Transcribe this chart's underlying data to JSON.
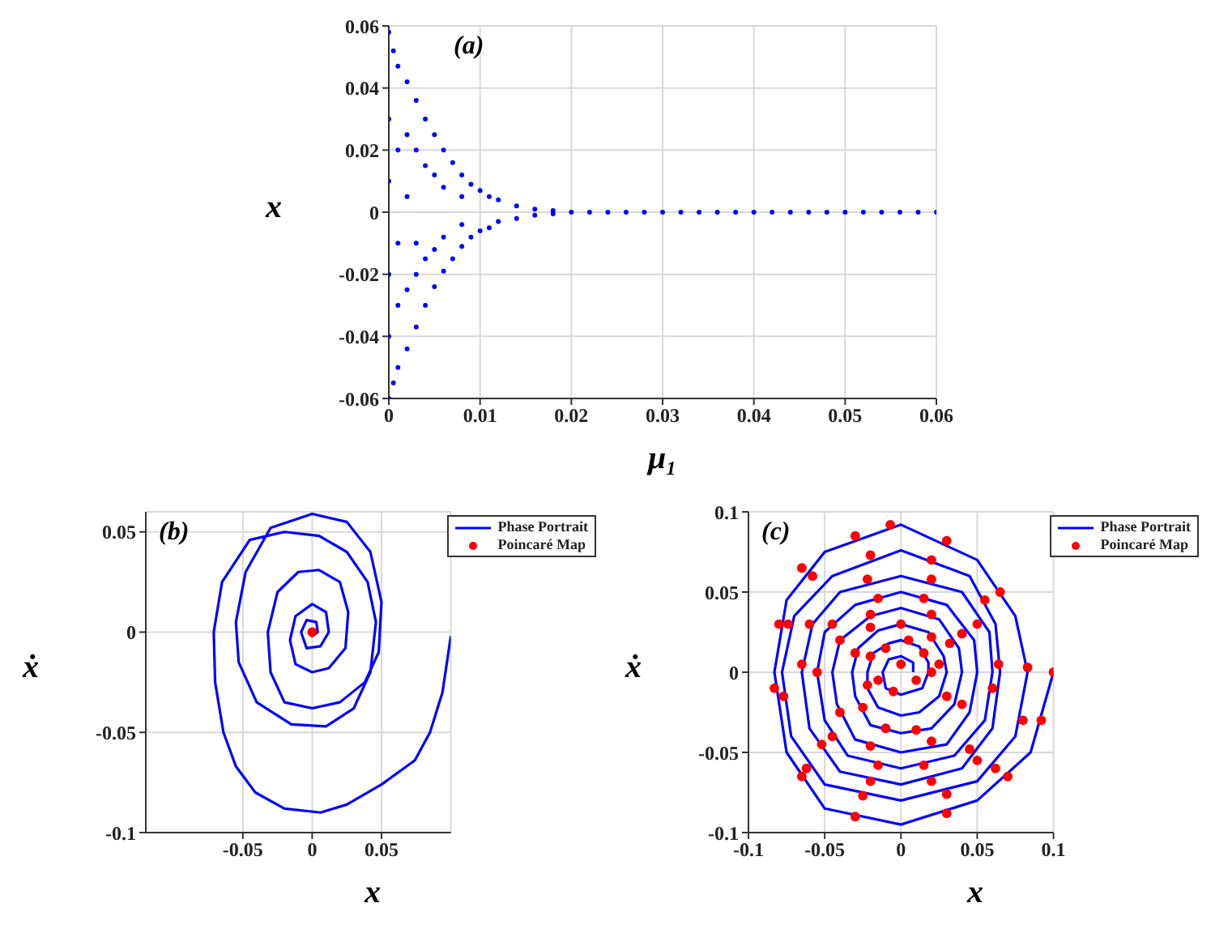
{
  "chart_data": [
    {
      "type": "scatter",
      "title": "(a)",
      "xlabel": "μ₁",
      "ylabel": "x",
      "xlim": [
        0,
        0.06
      ],
      "xticks": [
        0,
        0.01,
        0.02,
        0.03,
        0.04,
        0.05,
        0.06
      ],
      "ylim": [
        -0.06,
        0.06
      ],
      "yticks": [
        -0.06,
        -0.04,
        -0.02,
        0,
        0.02,
        0.04,
        0.06
      ],
      "grid": true,
      "marker": "circle",
      "series": [
        {
          "color": "#0000ff",
          "x": [
            0,
            0.0005,
            0.001,
            0.002,
            0.003,
            0.004,
            0.005,
            0.006,
            0.007,
            0.008,
            0.009,
            0.01,
            0.011,
            0.012,
            0.014,
            0.016,
            0.018,
            0,
            0.0005,
            0.001,
            0.002,
            0.003,
            0.004,
            0.005,
            0.006,
            0.007,
            0.008,
            0.009,
            0.01,
            0.011,
            0.012,
            0.014,
            0.016,
            0.018,
            0,
            0,
            0,
            0,
            0.001,
            0.001,
            0.001,
            0.002,
            0.002,
            0.002,
            0.003,
            0.003,
            0.003,
            0.004,
            0.004,
            0.005,
            0.005,
            0.006,
            0.006,
            0.008,
            0.008,
            0.02,
            0.022,
            0.024,
            0.026,
            0.028,
            0.03,
            0.032,
            0.034,
            0.036,
            0.038,
            0.04,
            0.042,
            0.044,
            0.046,
            0.048,
            0.05,
            0.052,
            0.054,
            0.056,
            0.058,
            0.06
          ],
          "values": [
            0.058,
            0.052,
            0.047,
            0.042,
            0.036,
            0.03,
            0.025,
            0.02,
            0.016,
            0.012,
            0.009,
            0.007,
            0.005,
            0.004,
            0.002,
            0.001,
            0.0005,
            -0.06,
            -0.055,
            -0.05,
            -0.044,
            -0.037,
            -0.03,
            -0.024,
            -0.019,
            -0.015,
            -0.011,
            -0.008,
            -0.006,
            -0.005,
            -0.003,
            -0.002,
            -0.001,
            -0.0005,
            0.03,
            0.01,
            -0.02,
            -0.04,
            0.02,
            -0.01,
            -0.03,
            0.025,
            0.005,
            -0.025,
            0.02,
            -0.01,
            -0.02,
            0.015,
            -0.015,
            0.012,
            -0.012,
            0.008,
            -0.008,
            0.005,
            -0.004,
            0,
            0,
            0,
            0,
            0,
            0,
            0,
            0,
            0,
            0,
            0,
            0,
            0,
            0,
            0,
            0,
            0,
            0,
            0,
            0,
            0
          ]
        }
      ]
    },
    {
      "type": "line",
      "title": "(b)",
      "xlabel": "x",
      "ylabel": "ẋ",
      "xlim": [
        -0.12,
        0.1
      ],
      "xticks": [
        -0.05,
        0,
        0.05
      ],
      "ylim": [
        -0.1,
        0.06
      ],
      "yticks": [
        -0.1,
        -0.05,
        0,
        0.05
      ],
      "grid": true,
      "legend": "top right",
      "line_style": "solid",
      "series": [
        {
          "name": "Phase Portrait",
          "type": "line",
          "color": "#0000ff",
          "x": [
            0.1,
            0.094,
            0.085,
            0.074,
            0.05,
            0.025,
            0.006,
            -0.02,
            -0.041,
            -0.055,
            -0.064,
            -0.07,
            -0.071,
            -0.065,
            -0.045,
            -0.02,
            0.005,
            0.025,
            0.04,
            0.046,
            0.042,
            0.03,
            0.01,
            -0.015,
            -0.04,
            -0.053,
            -0.055,
            -0.048,
            -0.03,
            0,
            0.025,
            0.042,
            0.05,
            0.048,
            0.038,
            0.02,
            0,
            -0.02,
            -0.03,
            -0.032,
            -0.025,
            -0.01,
            0.005,
            0.02,
            0.026,
            0.024,
            0.012,
            0,
            -0.012,
            -0.016,
            -0.012,
            0,
            0.01,
            0.012,
            0.006,
            -0.004,
            -0.008,
            -0.004,
            0.003,
            0.004,
            0,
            0
          ],
          "values": [
            -0.002,
            -0.03,
            -0.05,
            -0.064,
            -0.076,
            -0.086,
            -0.09,
            -0.088,
            -0.08,
            -0.067,
            -0.05,
            -0.025,
            0,
            0.025,
            0.046,
            0.05,
            0.048,
            0.04,
            0.025,
            0.005,
            -0.02,
            -0.038,
            -0.047,
            -0.046,
            -0.035,
            -0.015,
            0.005,
            0.03,
            0.052,
            0.059,
            0.055,
            0.04,
            0.015,
            -0.01,
            -0.025,
            -0.035,
            -0.038,
            -0.035,
            -0.02,
            0,
            0.02,
            0.03,
            0.031,
            0.025,
            0.01,
            -0.008,
            -0.018,
            -0.02,
            -0.016,
            -0.004,
            0.008,
            0.014,
            0.01,
            0,
            -0.007,
            -0.008,
            0,
            0.006,
            0.005,
            0,
            -0.002,
            0
          ]
        },
        {
          "name": "Poincaré Map",
          "type": "scatter",
          "color": "#ff0000",
          "marker": "circle",
          "x": [
            0
          ],
          "values": [
            0
          ]
        }
      ]
    },
    {
      "type": "line",
      "title": "(c)",
      "xlabel": "x",
      "ylabel": "ẋ",
      "xlim": [
        -0.1,
        0.1
      ],
      "xticks": [
        -0.1,
        -0.05,
        0,
        0.05,
        0.1
      ],
      "ylim": [
        -0.1,
        0.1
      ],
      "yticks": [
        -0.1,
        -0.05,
        0,
        0.05,
        0.1
      ],
      "grid": true,
      "legend": "top right",
      "line_style": "solid",
      "series": [
        {
          "name": "Phase Portrait",
          "type": "line",
          "color": "#0000ff",
          "x": [
            0.1,
            0.085,
            0.05,
            0,
            -0.05,
            -0.075,
            -0.083,
            -0.075,
            -0.05,
            0,
            0.05,
            0.075,
            0.083,
            0.075,
            0.05,
            0,
            -0.05,
            -0.072,
            -0.078,
            -0.07,
            -0.045,
            0,
            0.045,
            0.062,
            0.065,
            0.06,
            0.04,
            0,
            -0.04,
            -0.06,
            -0.065,
            -0.058,
            -0.04,
            0,
            0.04,
            0.058,
            0.06,
            0.055,
            0.035,
            0,
            -0.035,
            -0.05,
            -0.055,
            -0.05,
            -0.03,
            0,
            0.03,
            0.048,
            0.05,
            0.045,
            0.03,
            0,
            -0.03,
            -0.042,
            -0.045,
            -0.04,
            -0.02,
            0,
            0.025,
            0.038,
            0.04,
            0.035,
            0.02,
            0,
            -0.02,
            -0.03,
            -0.032,
            -0.028,
            -0.015,
            0,
            0.018,
            0.028,
            0.03,
            0.025,
            0.012,
            0,
            -0.015,
            -0.022,
            -0.022,
            -0.018,
            -0.008,
            0,
            0.012,
            0.018,
            0.018,
            0.014,
            0,
            -0.01,
            -0.012,
            -0.008,
            0,
            0.008,
            0.008
          ],
          "values": [
            0,
            -0.05,
            -0.08,
            -0.095,
            -0.085,
            -0.05,
            0,
            0.045,
            0.075,
            0.092,
            0.07,
            0.035,
            0,
            -0.04,
            -0.068,
            -0.08,
            -0.07,
            -0.04,
            0,
            0.035,
            0.06,
            0.076,
            0.06,
            0.03,
            0,
            -0.035,
            -0.06,
            -0.07,
            -0.062,
            -0.035,
            0,
            0.03,
            0.05,
            0.06,
            0.05,
            0.025,
            0,
            -0.03,
            -0.052,
            -0.06,
            -0.052,
            -0.03,
            0,
            0.025,
            0.042,
            0.05,
            0.042,
            0.02,
            0,
            -0.025,
            -0.045,
            -0.05,
            -0.042,
            -0.02,
            0,
            0.02,
            0.035,
            0.04,
            0.033,
            0.015,
            0,
            -0.02,
            -0.035,
            -0.038,
            -0.033,
            -0.015,
            0,
            0.015,
            0.026,
            0.03,
            0.025,
            0.01,
            0,
            -0.015,
            -0.025,
            -0.027,
            -0.022,
            -0.01,
            0,
            0.012,
            0.018,
            0.02,
            0.016,
            0.006,
            0,
            -0.01,
            -0.014,
            -0.01,
            0,
            0.008,
            0.01,
            0.006,
            0
          ]
        },
        {
          "name": "Poincaré Map",
          "type": "scatter",
          "color": "#ff0000",
          "marker": "circle",
          "x": [
            0.1,
            0.092,
            0.07,
            0.03,
            -0.03,
            -0.065,
            -0.083,
            -0.08,
            -0.065,
            -0.03,
            -0.007,
            0.03,
            0.065,
            0.083,
            0.08,
            0.062,
            0.03,
            -0.025,
            -0.062,
            -0.077,
            -0.074,
            -0.058,
            -0.02,
            0.02,
            0.055,
            0.064,
            0.05,
            0.02,
            -0.02,
            -0.052,
            -0.065,
            -0.06,
            -0.022,
            0.02,
            0.05,
            0.06,
            0.045,
            0.015,
            -0.015,
            -0.045,
            -0.055,
            -0.045,
            -0.015,
            0.015,
            0.04,
            0.04,
            0.02,
            -0.02,
            -0.04,
            -0.04,
            -0.02,
            0.02,
            0.032,
            0.03,
            0.01,
            -0.01,
            -0.025,
            -0.03,
            -0.02,
            0,
            0.02,
            0.025,
            -0.02,
            -0.015,
            -0.01,
            0,
            0.01,
            0.015,
            -0.005,
            0.02,
            -0.022,
            0.005
          ],
          "values": [
            0,
            -0.03,
            -0.065,
            -0.088,
            -0.09,
            -0.065,
            -0.01,
            0.03,
            0.065,
            0.085,
            0.092,
            0.082,
            0.05,
            0.003,
            -0.03,
            -0.06,
            -0.076,
            -0.077,
            -0.06,
            -0.015,
            0.03,
            0.06,
            0.073,
            0.07,
            0.045,
            0.005,
            -0.055,
            -0.068,
            -0.068,
            -0.045,
            0.005,
            0.03,
            0.058,
            0.058,
            0.03,
            -0.01,
            -0.048,
            -0.058,
            -0.058,
            -0.04,
            0,
            0.03,
            0.046,
            0.046,
            0.024,
            -0.02,
            -0.043,
            -0.046,
            -0.025,
            0.02,
            0.036,
            0.036,
            0.018,
            -0.015,
            -0.036,
            -0.035,
            -0.022,
            0.012,
            0.028,
            0.03,
            0.022,
            0.005,
            0.01,
            -0.005,
            0.015,
            0.005,
            -0.005,
            0.012,
            -0.012,
            0,
            -0.008,
            0.02
          ]
        }
      ]
    }
  ]
}
